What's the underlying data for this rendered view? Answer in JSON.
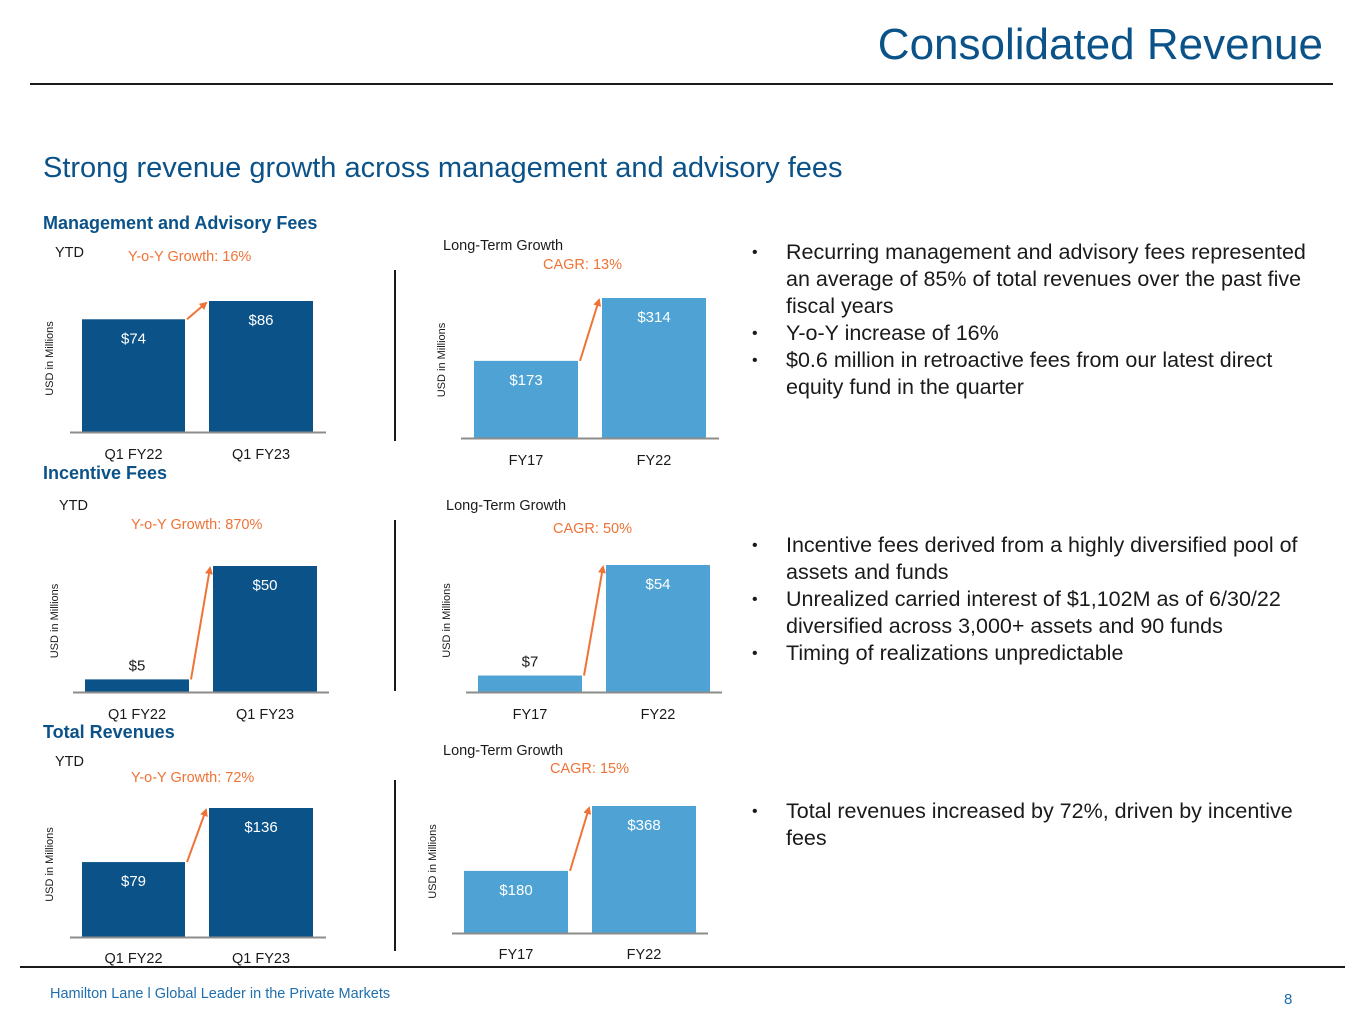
{
  "header": {
    "title": "Consolidated Revenue",
    "subtitle": "Strong revenue growth across management and advisory fees"
  },
  "sections": [
    {
      "title": "Management and Advisory Fees",
      "bullets": [
        "Recurring management and advisory fees represented an average of 85% of total revenues over the past five fiscal years",
        "Y-o-Y increase of 16%",
        "$0.6 million in retroactive fees from our latest direct equity fund in the quarter"
      ]
    },
    {
      "title": "Incentive Fees",
      "bullets": [
        "Incentive fees derived from a highly diversified pool of assets and funds",
        "Unrealized carried interest of $1,102M as of 6/30/22 diversified across 3,000+ assets and 90 funds",
        "Timing of realizations unpredictable"
      ]
    },
    {
      "title": "Total Revenues",
      "bullets": [
        "Total revenues increased by 72%, driven by incentive fees"
      ]
    }
  ],
  "colors": {
    "brand_blue": "#0b5289",
    "dark_bar": "#0b5289",
    "light_bar": "#4fa3d4",
    "growth_orange": "#ef7336",
    "footer_blue": "#1f6fae"
  },
  "chart_data": [
    {
      "type": "bar",
      "section": "Management and Advisory Fees",
      "title": "YTD",
      "annotation": "Y-o-Y Growth: 16%",
      "ylabel": "USD in Millions",
      "categories": [
        "Q1 FY22",
        "Q1 FY23"
      ],
      "values": [
        74,
        86
      ],
      "labels": [
        "$74",
        "$86"
      ],
      "ylim": [
        0,
        86
      ],
      "color": "dark",
      "grid": false
    },
    {
      "type": "bar",
      "section": "Management and Advisory Fees",
      "title": "Long-Term Growth",
      "annotation": "CAGR: 13%",
      "ylabel": "USD in Millions",
      "categories": [
        "FY17",
        "FY22"
      ],
      "values": [
        173,
        314
      ],
      "labels": [
        "$173",
        "$314"
      ],
      "ylim": [
        0,
        314
      ],
      "color": "light",
      "grid": false
    },
    {
      "type": "bar",
      "section": "Incentive Fees",
      "title": "YTD",
      "annotation": "Y-o-Y Growth: 870%",
      "ylabel": "USD in Millions",
      "categories": [
        "Q1 FY22",
        "Q1 FY23"
      ],
      "values": [
        5,
        50
      ],
      "labels": [
        "$5",
        "$50"
      ],
      "ylim": [
        0,
        50
      ],
      "color": "dark",
      "grid": false
    },
    {
      "type": "bar",
      "section": "Incentive Fees",
      "title": "Long-Term Growth",
      "annotation": "CAGR: 50%",
      "ylabel": "USD in Millions",
      "categories": [
        "FY17",
        "FY22"
      ],
      "values": [
        7,
        54
      ],
      "labels": [
        "$7",
        "$54"
      ],
      "ylim": [
        0,
        54
      ],
      "color": "light",
      "grid": false
    },
    {
      "type": "bar",
      "section": "Total Revenues",
      "title": "YTD",
      "annotation": "Y-o-Y Growth: 72%",
      "ylabel": "USD in Millions",
      "categories": [
        "Q1 FY22",
        "Q1 FY23"
      ],
      "values": [
        79,
        136
      ],
      "labels": [
        "$79",
        "$136"
      ],
      "ylim": [
        0,
        136
      ],
      "color": "dark",
      "grid": false
    },
    {
      "type": "bar",
      "section": "Total Revenues",
      "title": "Long-Term Growth",
      "annotation": "CAGR: 15%",
      "ylabel": "USD in Millions",
      "categories": [
        "FY17",
        "FY22"
      ],
      "values": [
        180,
        368
      ],
      "labels": [
        "$180",
        "$368"
      ],
      "ylim": [
        0,
        368
      ],
      "color": "light",
      "grid": false
    }
  ],
  "footer": {
    "text": "Hamilton Lane l Global Leader in the Private Markets",
    "page_number": "8"
  }
}
